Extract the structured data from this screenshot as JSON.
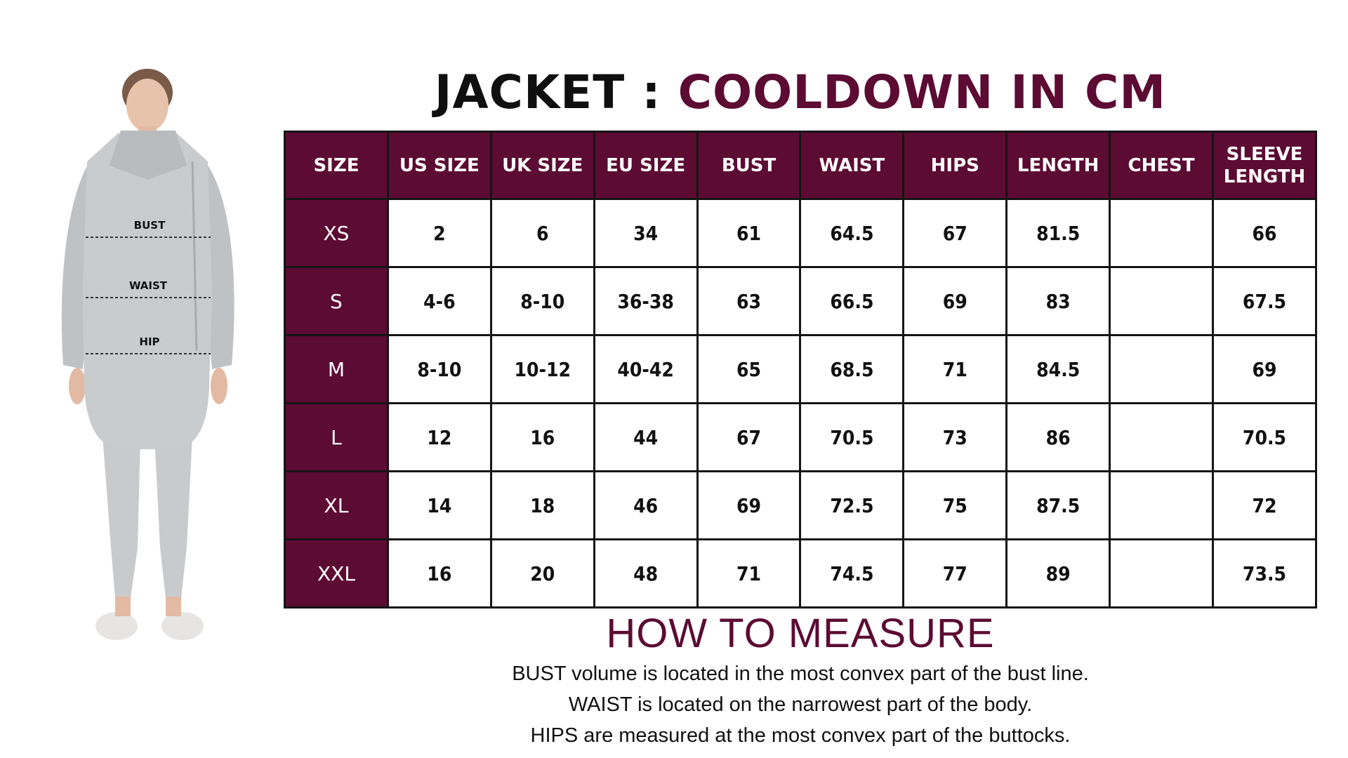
{
  "title": {
    "prefix": "JACKET : ",
    "accent": "COOLDOWN IN CM"
  },
  "figure": {
    "labels": {
      "bust": "BUST",
      "waist": "WAIST",
      "hip": "HIP"
    }
  },
  "table": {
    "headers": [
      "SIZE",
      "US SIZE",
      "UK SIZE",
      "EU SIZE",
      "BUST",
      "WAIST",
      "HIPS",
      "LENGTH",
      "CHEST",
      "SLEEVE LENGTH"
    ],
    "rows": [
      [
        "XS",
        "2",
        "6",
        "34",
        "61",
        "64.5",
        "67",
        "81.5",
        "",
        "66"
      ],
      [
        "S",
        "4-6",
        "8-10",
        "36-38",
        "63",
        "66.5",
        "69",
        "83",
        "",
        "67.5"
      ],
      [
        "M",
        "8-10",
        "10-12",
        "40-42",
        "65",
        "68.5",
        "71",
        "84.5",
        "",
        "69"
      ],
      [
        "L",
        "12",
        "16",
        "44",
        "67",
        "70.5",
        "73",
        "86",
        "",
        "70.5"
      ],
      [
        "XL",
        "14",
        "18",
        "46",
        "69",
        "72.5",
        "75",
        "87.5",
        "",
        "72"
      ],
      [
        "XXL",
        "16",
        "20",
        "48",
        "71",
        "74.5",
        "77",
        "89",
        "",
        "73.5"
      ]
    ]
  },
  "how_to_measure": {
    "title": "HOW TO MEASURE",
    "lines": [
      "BUST volume is located in the most convex part of the bust line.",
      "WAIST is located on the narrowest part of the body.",
      "HIPS are measured at the most convex part of the buttocks."
    ]
  },
  "colors": {
    "accent": "#5c0b33",
    "jacket": "#c9ccce",
    "leggings": "#c8cacb"
  }
}
